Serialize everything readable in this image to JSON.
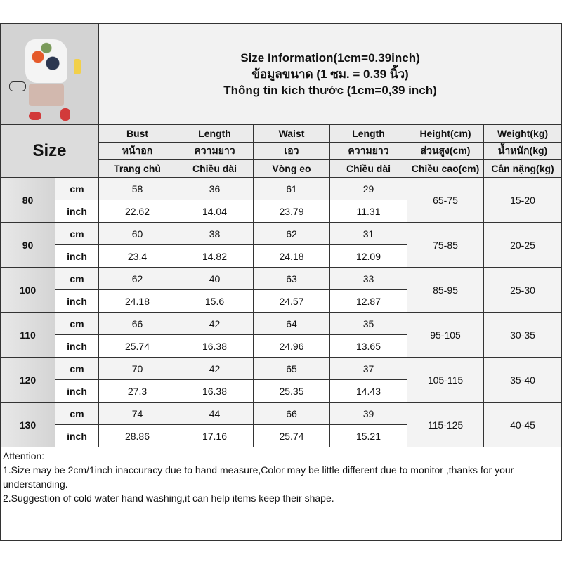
{
  "title_lines": [
    "Size Information(1cm=0.39inch)",
    "ข้อมูลขนาด (1 ซม. = 0.39 นิ้ว)",
    "Thông tin kích thước (1cm=0,39 inch)"
  ],
  "size_label": "Size",
  "columns": [
    {
      "en": "Bust",
      "th": "หน้าอก",
      "vi": "Trang chủ"
    },
    {
      "en": "Length",
      "th": "ความยาว",
      "vi": "Chiều dài"
    },
    {
      "en": "Waist",
      "th": "เอว",
      "vi": "Vòng eo"
    },
    {
      "en": "Length",
      "th": "ความยาว",
      "vi": "Chiều dài"
    },
    {
      "en": "Height(cm)",
      "th": "ส่วนสูง(cm)",
      "vi": "Chiều cao(cm)"
    },
    {
      "en": "Weight(kg)",
      "th": "น้ำหนัก(kg)",
      "vi": "Cân nặng(kg)"
    }
  ],
  "units": {
    "cm": "cm",
    "inch": "inch"
  },
  "rows": [
    {
      "size": "80",
      "cm": [
        "58",
        "36",
        "61",
        "29"
      ],
      "inch": [
        "22.62",
        "14.04",
        "23.79",
        "11.31"
      ],
      "height": "65-75",
      "weight": "15-20"
    },
    {
      "size": "90",
      "cm": [
        "60",
        "38",
        "62",
        "31"
      ],
      "inch": [
        "23.4",
        "14.82",
        "24.18",
        "12.09"
      ],
      "height": "75-85",
      "weight": "20-25"
    },
    {
      "size": "100",
      "cm": [
        "62",
        "40",
        "63",
        "33"
      ],
      "inch": [
        "24.18",
        "15.6",
        "24.57",
        "12.87"
      ],
      "height": "85-95",
      "weight": "25-30"
    },
    {
      "size": "110",
      "cm": [
        "66",
        "42",
        "64",
        "35"
      ],
      "inch": [
        "25.74",
        "16.38",
        "24.96",
        "13.65"
      ],
      "height": "95-105",
      "weight": "30-35"
    },
    {
      "size": "120",
      "cm": [
        "70",
        "42",
        "65",
        "37"
      ],
      "inch": [
        "27.3",
        "16.38",
        "25.35",
        "14.43"
      ],
      "height": "105-115",
      "weight": "35-40"
    },
    {
      "size": "130",
      "cm": [
        "74",
        "44",
        "66",
        "39"
      ],
      "inch": [
        "28.86",
        "17.16",
        "25.74",
        "15.21"
      ],
      "height": "115-125",
      "weight": "40-45"
    }
  ],
  "attention": {
    "heading": "Attention:",
    "notes": [
      "1.Size may be 2cm/1inch inaccuracy due to hand measure,Color may be little different due to monitor ,thanks for your understanding.",
      "2.Suggestion of cold water hand washing,it can help items keep their shape."
    ]
  }
}
